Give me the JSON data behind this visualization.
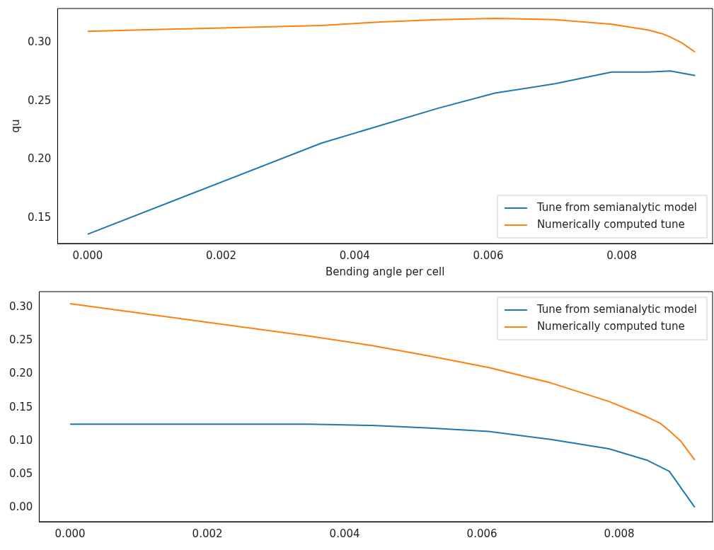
{
  "chart_data": [
    {
      "type": "line",
      "xlabel": "Bending angle per cell",
      "ylabel": "qu",
      "xlim": [
        -0.00045,
        0.00936
      ],
      "xticks": [
        {
          "value": 0,
          "label": "0.000"
        },
        {
          "value": 0.002,
          "label": "0.002"
        },
        {
          "value": 0.004,
          "label": "0.004"
        },
        {
          "value": 0.006,
          "label": "0.006"
        },
        {
          "value": 0.008,
          "label": "0.008"
        }
      ],
      "ylim": [
        0.128,
        0.3295
      ],
      "yticks": [
        {
          "value": 0.15,
          "label": "0.15"
        },
        {
          "value": 0.2,
          "label": "0.20"
        },
        {
          "value": 0.25,
          "label": "0.25"
        },
        {
          "value": 0.3,
          "label": "0.30"
        }
      ],
      "grid": false,
      "legend": "bottom right",
      "series": [
        {
          "name": "Tune from semianalytic model",
          "color": "#1f77b4",
          "x": [
            0,
            0.0035,
            0.00525,
            0.0061,
            0.007,
            0.00785,
            0.0084,
            0.00873,
            0.0091
          ],
          "values": [
            0.136,
            0.214,
            0.244,
            0.257,
            0.265,
            0.275,
            0.275,
            0.276,
            0.272
          ]
        },
        {
          "name": "Numerically computed tune",
          "color": "#ff7f0e",
          "x": [
            0,
            0.0035,
            0.0044,
            0.00525,
            0.0061,
            0.007,
            0.00785,
            0.0084,
            0.0086,
            0.00873,
            0.0089,
            0.0091
          ],
          "values": [
            0.31,
            0.315,
            0.318,
            0.32,
            0.321,
            0.32,
            0.316,
            0.311,
            0.308,
            0.305,
            0.3,
            0.292
          ]
        }
      ]
    },
    {
      "type": "line",
      "xlim": [
        -0.00045,
        0.00936
      ],
      "xticks": [
        {
          "value": 0,
          "label": "0.000"
        },
        {
          "value": 0.002,
          "label": "0.002"
        },
        {
          "value": 0.004,
          "label": "0.004"
        },
        {
          "value": 0.006,
          "label": "0.006"
        },
        {
          "value": 0.008,
          "label": "0.008"
        }
      ],
      "ylim": [
        -0.0216,
        0.324
      ],
      "yticks": [
        {
          "value": 0,
          "label": "0.00"
        },
        {
          "value": 0.05,
          "label": "0.05"
        },
        {
          "value": 0.1,
          "label": "0.10"
        },
        {
          "value": 0.15,
          "label": "0.15"
        },
        {
          "value": 0.2,
          "label": "0.20"
        },
        {
          "value": 0.25,
          "label": "0.25"
        },
        {
          "value": 0.3,
          "label": "0.30"
        }
      ],
      "grid": false,
      "legend": "top right",
      "series": [
        {
          "name": "Tune from semianalytic model",
          "color": "#1f77b4",
          "x": [
            0,
            0.0035,
            0.0044,
            0.00525,
            0.0061,
            0.007,
            0.00785,
            0.0084,
            0.00873,
            0.0091
          ],
          "values": [
            0.125,
            0.125,
            0.123,
            0.119,
            0.114,
            0.102,
            0.088,
            0.071,
            0.054,
            0.0
          ]
        },
        {
          "name": "Numerically computed tune",
          "color": "#ff7f0e",
          "x": [
            0,
            0.0035,
            0.0044,
            0.00525,
            0.0061,
            0.007,
            0.00785,
            0.0084,
            0.0086,
            0.00873,
            0.0089,
            0.0091
          ],
          "values": [
            0.306,
            0.257,
            0.243,
            0.227,
            0.21,
            0.187,
            0.159,
            0.136,
            0.126,
            0.115,
            0.099,
            0.071
          ]
        }
      ]
    }
  ]
}
